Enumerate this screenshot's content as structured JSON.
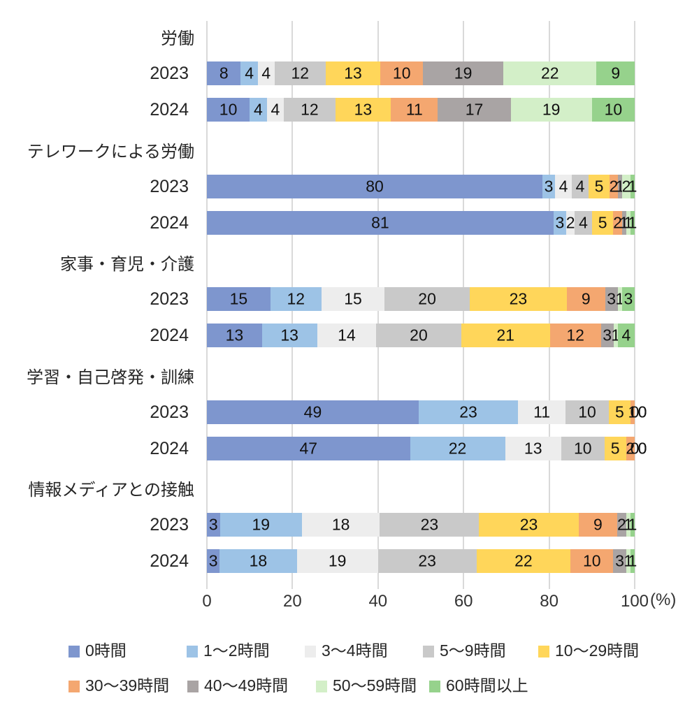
{
  "chart_data": {
    "type": "bar",
    "orientation": "horizontal-stacked",
    "title": "",
    "unit": "(%)",
    "x_range": [
      0,
      100
    ],
    "x_ticks": [
      "0",
      "20",
      "40",
      "60",
      "80",
      "100"
    ],
    "grid": true,
    "legend_position": "bottom",
    "series_labels": [
      "0時間",
      "1〜2時間",
      "3〜4時間",
      "5〜9時間",
      "10〜29時間",
      "30〜39時間",
      "40〜49時間",
      "50〜59時間",
      "60時間以上"
    ],
    "series_colors": [
      "#7E96CE",
      "#9DC3E6",
      "#EDEDED",
      "#C9C9C9",
      "#FFD65A",
      "#F4A770",
      "#A9A4A4",
      "#D3EFC8",
      "#96D28C"
    ],
    "groups": [
      {
        "label": "労働",
        "rows": [
          {
            "year": "2023",
            "values": [
              8,
              4,
              4,
              12,
              13,
              10,
              19,
              22,
              9
            ]
          },
          {
            "year": "2024",
            "values": [
              10,
              4,
              4,
              12,
              13,
              11,
              17,
              19,
              10
            ]
          }
        ]
      },
      {
        "label": "テレワークによる労働",
        "rows": [
          {
            "year": "2023",
            "values": [
              80,
              3,
              4,
              4,
              5,
              2,
              1,
              2,
              1
            ]
          },
          {
            "year": "2024",
            "values": [
              81,
              3,
              2,
              4,
              5,
              2,
              1,
              1,
              1
            ]
          }
        ]
      },
      {
        "label": "家事・育児・介護",
        "rows": [
          {
            "year": "2023",
            "values": [
              15,
              12,
              15,
              20,
              23,
              9,
              3,
              1,
              3
            ]
          },
          {
            "year": "2024",
            "values": [
              13,
              13,
              14,
              20,
              21,
              12,
              3,
              1,
              4
            ]
          }
        ]
      },
      {
        "label": "学習・自己啓発・訓練",
        "rows": [
          {
            "year": "2023",
            "values": [
              49,
              23,
              11,
              10,
              5,
              1,
              0,
              0,
              0
            ]
          },
          {
            "year": "2024",
            "values": [
              47,
              22,
              13,
              10,
              5,
              2,
              0,
              0,
              0
            ]
          }
        ]
      },
      {
        "label": "情報メディアとの接触",
        "rows": [
          {
            "year": "2023",
            "values": [
              3,
              19,
              18,
              23,
              23,
              9,
              2,
              1,
              1
            ]
          },
          {
            "year": "2024",
            "values": [
              3,
              18,
              19,
              23,
              22,
              10,
              3,
              1,
              1
            ]
          }
        ]
      }
    ]
  }
}
